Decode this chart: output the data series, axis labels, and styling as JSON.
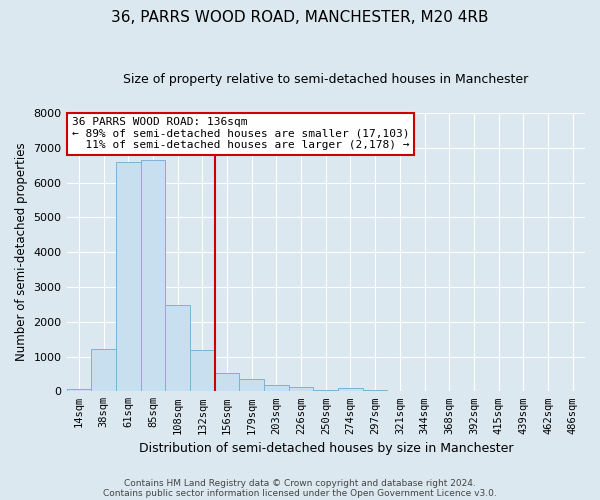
{
  "title": "36, PARRS WOOD ROAD, MANCHESTER, M20 4RB",
  "subtitle": "Size of property relative to semi-detached houses in Manchester",
  "xlabel": "Distribution of semi-detached houses by size in Manchester",
  "ylabel": "Number of semi-detached properties",
  "bar_color": "#c8dff0",
  "bar_edge_color": "#7ab3d4",
  "categories": [
    "14sqm",
    "38sqm",
    "61sqm",
    "85sqm",
    "108sqm",
    "132sqm",
    "156sqm",
    "179sqm",
    "203sqm",
    "226sqm",
    "250sqm",
    "274sqm",
    "297sqm",
    "321sqm",
    "344sqm",
    "368sqm",
    "392sqm",
    "415sqm",
    "439sqm",
    "462sqm",
    "486sqm"
  ],
  "values": [
    60,
    1230,
    6580,
    6650,
    2480,
    1200,
    520,
    340,
    195,
    110,
    50,
    95,
    25,
    8,
    0,
    0,
    0,
    0,
    0,
    0,
    0
  ],
  "vline_color": "#cc0000",
  "annotation_text": "36 PARRS WOOD ROAD: 136sqm\n← 89% of semi-detached houses are smaller (17,103)\n  11% of semi-detached houses are larger (2,178) →",
  "annotation_box_color": "#ffffff",
  "annotation_box_edge": "#cc0000",
  "ylim": [
    0,
    8000
  ],
  "yticks": [
    0,
    1000,
    2000,
    3000,
    4000,
    5000,
    6000,
    7000,
    8000
  ],
  "footer_line1": "Contains HM Land Registry data © Crown copyright and database right 2024.",
  "footer_line2": "Contains public sector information licensed under the Open Government Licence v3.0.",
  "background_color": "#dce8f0",
  "plot_bg_color": "#dce8f0",
  "grid_color": "#ffffff"
}
